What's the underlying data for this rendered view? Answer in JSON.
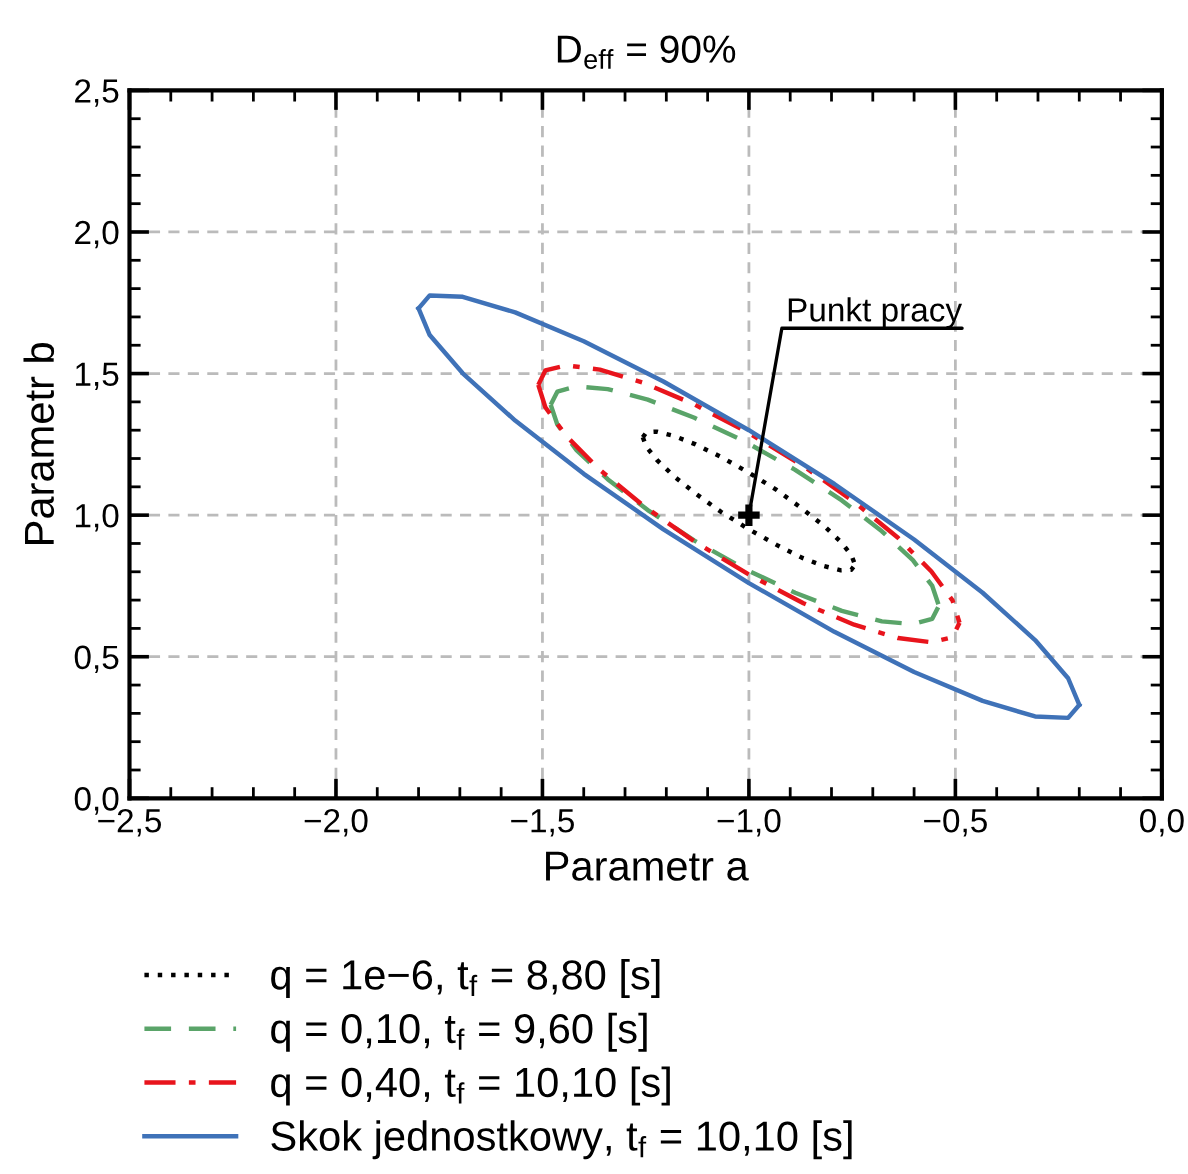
{
  "chart_data": {
    "type": "line",
    "title": "D$_{eff}$ = 90%",
    "xlabel": "Parametr a",
    "ylabel": "Parametr b",
    "xlim": [
      -2.5,
      0.0
    ],
    "xticks": [
      {
        "value": -2.5,
        "label": "−2,5"
      },
      {
        "value": -2.0,
        "label": "−2,0"
      },
      {
        "value": -1.5,
        "label": "−1,5"
      },
      {
        "value": -1.0,
        "label": "−1,0"
      },
      {
        "value": -0.5,
        "label": "−0,5"
      },
      {
        "value": 0.0,
        "label": "0,0"
      }
    ],
    "ylim": [
      0.0,
      2.5
    ],
    "yticks": [
      {
        "value": 0.0,
        "label": "0,0"
      },
      {
        "value": 0.5,
        "label": "0,5"
      },
      {
        "value": 1.0,
        "label": "1,0"
      },
      {
        "value": 1.5,
        "label": "1,5"
      },
      {
        "value": 2.0,
        "label": "2,0"
      },
      {
        "value": 2.5,
        "label": "2,5"
      }
    ],
    "grid": true,
    "legend": "bottom",
    "marker": "none",
    "annotations": [
      {
        "text": "Punkt pracy",
        "x": -1.0,
        "y": 1.0
      }
    ],
    "series": [
      {
        "name": "q = 1e−6, t$_{f}$ = 8,80 [s]",
        "color": "#000000",
        "line_style": "dotted",
        "x": [
          -1.257,
          -1.248,
          -1.223,
          -1.182,
          -1.129,
          -1.067,
          -1.0,
          -0.933,
          -0.872,
          -0.818,
          -0.777,
          -0.752,
          -0.743
        ],
        "values": [
          1.275,
          1.293,
          1.295,
          1.28,
          1.25,
          1.205,
          1.15,
          1.089,
          1.024,
          0.962,
          0.905,
          0.859,
          0.825
        ]
      },
      {
        "color": "#000000",
        "line_style": "dotted",
        "x": [
          -1.257,
          -1.248,
          -1.223,
          -1.182,
          -1.129,
          -1.067,
          -1.0,
          -0.933,
          -0.872,
          -0.818,
          -0.777,
          -0.752,
          -0.743
        ],
        "values": [
          1.275,
          1.241,
          1.195,
          1.138,
          1.076,
          1.011,
          0.95,
          0.895,
          0.85,
          0.82,
          0.805,
          0.807,
          0.825
        ]
      },
      {
        "name": "q = 0,10, t$_{f}$ = 9,60 [s]",
        "color": "#5aa469",
        "line_style": "dashed",
        "x": [
          -1.48,
          -1.464,
          -1.417,
          -1.342,
          -1.245,
          -1.132,
          -1.01,
          -0.888,
          -0.775,
          -0.678,
          -0.603,
          -0.556,
          -0.54
        ],
        "values": [
          1.39,
          1.436,
          1.455,
          1.445,
          1.408,
          1.344,
          1.26,
          1.16,
          1.052,
          0.943,
          0.841,
          0.75,
          0.68
        ]
      },
      {
        "color": "#5aa469",
        "line_style": "dashed",
        "x": [
          -1.48,
          -1.464,
          -1.417,
          -1.342,
          -1.245,
          -1.132,
          -1.01,
          -0.888,
          -0.775,
          -0.678,
          -0.603,
          -0.556,
          -0.54
        ],
        "values": [
          1.39,
          1.32,
          1.229,
          1.127,
          1.018,
          0.91,
          0.81,
          0.726,
          0.662,
          0.625,
          0.615,
          0.634,
          0.68
        ]
      },
      {
        "name": "q = 0,40, t$_{f}$ = 10,10 [s]",
        "color": "#e8141c",
        "line_style": "dashdot",
        "x": [
          -1.51,
          -1.493,
          -1.442,
          -1.361,
          -1.255,
          -1.132,
          -1.0,
          -0.868,
          -0.745,
          -0.639,
          -0.558,
          -0.507,
          -0.49
        ],
        "values": [
          1.46,
          1.511,
          1.529,
          1.514,
          1.467,
          1.391,
          1.29,
          1.173,
          1.047,
          0.92,
          0.801,
          0.699,
          0.62
        ]
      },
      {
        "color": "#e8141c",
        "line_style": "dashdot",
        "x": [
          -1.51,
          -1.493,
          -1.442,
          -1.361,
          -1.255,
          -1.132,
          -1.0,
          -0.868,
          -0.745,
          -0.639,
          -0.558,
          -0.507,
          -0.49
        ],
        "values": [
          1.46,
          1.381,
          1.279,
          1.16,
          1.033,
          0.907,
          0.79,
          0.689,
          0.613,
          0.566,
          0.551,
          0.569,
          0.62
        ]
      },
      {
        "name": "Skok jednostkowy, t$_{f}$ = 10,10 [s]",
        "color": "#3f72b8",
        "line_style": "solid",
        "x": [
          -1.8,
          -1.773,
          -1.693,
          -1.566,
          -1.4,
          -1.207,
          -1.0,
          -0.793,
          -0.6,
          -0.434,
          -0.307,
          -0.227,
          -0.2
        ],
        "values": [
          1.73,
          1.776,
          1.771,
          1.716,
          1.614,
          1.472,
          1.3,
          1.11,
          0.914,
          0.726,
          0.559,
          0.424,
          0.33
        ]
      },
      {
        "color": "#3f72b8",
        "line_style": "solid",
        "x": [
          -1.8,
          -1.773,
          -1.693,
          -1.566,
          -1.4,
          -1.207,
          -1.0,
          -0.793,
          -0.6,
          -0.434,
          -0.307,
          -0.227,
          -0.2
        ],
        "values": [
          1.73,
          1.636,
          1.501,
          1.334,
          1.146,
          0.95,
          0.76,
          0.588,
          0.446,
          0.344,
          0.289,
          0.284,
          0.33
        ]
      },
      {
        "type": "scatter",
        "marker": "cross",
        "color": "#000000",
        "x": [
          -1.0
        ],
        "values": [
          1.0
        ]
      }
    ]
  }
}
